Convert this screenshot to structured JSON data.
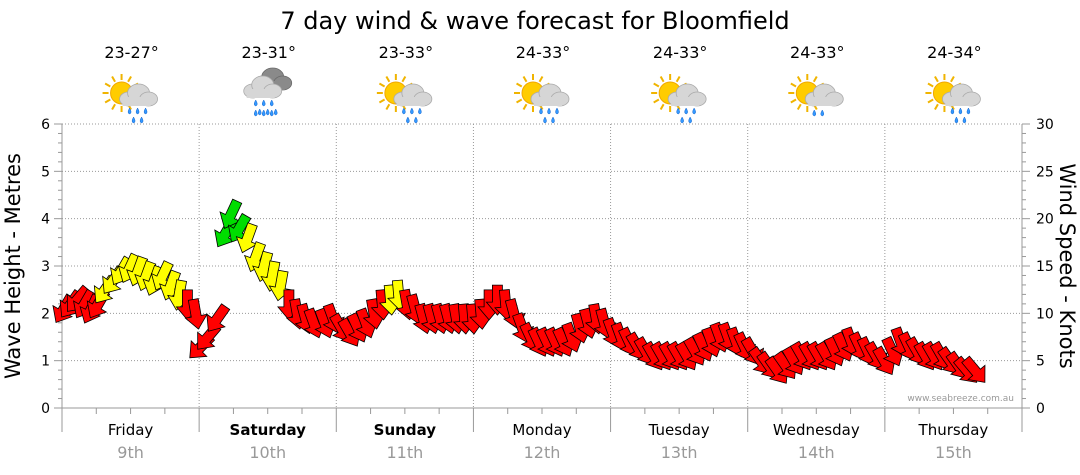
{
  "chart_data": {
    "type": "line",
    "title": "7 day wind & wave forecast for Bloomfield",
    "ylabel_left": "Wave Height - Metres",
    "ylabel_right": "Wind Speed - Knots",
    "ylim_left": [
      0,
      6
    ],
    "ylim_right": [
      0,
      30
    ],
    "yticks_left": [
      "0",
      "1",
      "2",
      "3",
      "4",
      "5",
      "6"
    ],
    "yticks_right": [
      "0",
      "5",
      "10",
      "15",
      "20",
      "25",
      "30"
    ],
    "grid": true,
    "watermark": "www.seabreeze.com.au",
    "days": [
      {
        "name": "Friday",
        "date": "9th",
        "temp": "23-27°",
        "icon": "sun-cloud-showers-icon",
        "bold": false
      },
      {
        "name": "Saturday",
        "date": "10th",
        "temp": "23-31°",
        "icon": "cloud-rain-icon",
        "bold": true
      },
      {
        "name": "Sunday",
        "date": "11th",
        "temp": "23-33°",
        "icon": "sun-cloud-showers-icon",
        "bold": true
      },
      {
        "name": "Monday",
        "date": "12th",
        "temp": "24-33°",
        "icon": "sun-cloud-showers-icon",
        "bold": false
      },
      {
        "name": "Tuesday",
        "date": "13th",
        "temp": "24-33°",
        "icon": "sun-cloud-showers-icon",
        "bold": false
      },
      {
        "name": "Wednesday",
        "date": "14th",
        "temp": "24-33°",
        "icon": "sun-cloud-light-rain-icon",
        "bold": false
      },
      {
        "name": "Thursday",
        "date": "15th",
        "temp": "24-34°",
        "icon": "sun-cloud-showers-icon",
        "bold": false
      }
    ],
    "series": [
      {
        "name": "Wind Speed",
        "unit": "knots",
        "color_scale": {
          "red": "#ff0000",
          "yellow": "#ffff00",
          "green": "#00dd00"
        },
        "points": [
          [
            0.0,
            10.5,
            210,
            "red"
          ],
          [
            0.05,
            11.0,
            215,
            "red"
          ],
          [
            0.1,
            11.5,
            220,
            "red"
          ],
          [
            0.15,
            11.0,
            210,
            "red"
          ],
          [
            0.2,
            10.5,
            205,
            "red"
          ],
          [
            0.25,
            11.0,
            210,
            "red"
          ],
          [
            0.3,
            12.5,
            215,
            "yellow"
          ],
          [
            0.36,
            13.5,
            215,
            "yellow"
          ],
          [
            0.42,
            14.5,
            210,
            "yellow"
          ],
          [
            0.48,
            14.8,
            205,
            "yellow"
          ],
          [
            0.54,
            14.5,
            200,
            "yellow"
          ],
          [
            0.6,
            14.0,
            200,
            "yellow"
          ],
          [
            0.66,
            13.5,
            200,
            "yellow"
          ],
          [
            0.72,
            14.0,
            205,
            "yellow"
          ],
          [
            0.78,
            13.0,
            200,
            "yellow"
          ],
          [
            0.84,
            12.0,
            190,
            "yellow"
          ],
          [
            0.9,
            11.0,
            180,
            "red"
          ],
          [
            0.96,
            10.0,
            170,
            "red"
          ],
          [
            1.0,
            6.5,
            225,
            "red"
          ],
          [
            1.05,
            7.5,
            220,
            "red"
          ],
          [
            1.12,
            9.5,
            215,
            "red"
          ],
          [
            1.18,
            18.5,
            210,
            "green"
          ],
          [
            1.22,
            20.5,
            205,
            "green"
          ],
          [
            1.28,
            19.0,
            210,
            "green"
          ],
          [
            1.34,
            18.0,
            200,
            "yellow"
          ],
          [
            1.4,
            16.0,
            200,
            "yellow"
          ],
          [
            1.46,
            15.0,
            195,
            "yellow"
          ],
          [
            1.52,
            14.0,
            190,
            "yellow"
          ],
          [
            1.58,
            13.0,
            190,
            "yellow"
          ],
          [
            1.64,
            11.0,
            180,
            "red"
          ],
          [
            1.7,
            10.0,
            170,
            "red"
          ],
          [
            1.76,
            9.5,
            165,
            "red"
          ],
          [
            1.82,
            9.0,
            160,
            "red"
          ],
          [
            1.9,
            9.0,
            160,
            "red"
          ],
          [
            1.96,
            9.5,
            160,
            "red"
          ],
          [
            2.02,
            8.5,
            150,
            "red"
          ],
          [
            2.08,
            8.0,
            150,
            "red"
          ],
          [
            2.14,
            8.5,
            155,
            "red"
          ],
          [
            2.2,
            9.0,
            160,
            "red"
          ],
          [
            2.26,
            10.0,
            170,
            "red"
          ],
          [
            2.32,
            11.0,
            175,
            "red"
          ],
          [
            2.38,
            11.5,
            175,
            "yellow"
          ],
          [
            2.44,
            12.0,
            175,
            "yellow"
          ],
          [
            2.5,
            11.0,
            170,
            "red"
          ],
          [
            2.56,
            10.5,
            165,
            "red"
          ],
          [
            2.62,
            9.5,
            165,
            "red"
          ],
          [
            2.68,
            9.5,
            165,
            "red"
          ],
          [
            2.74,
            9.5,
            165,
            "red"
          ],
          [
            2.8,
            9.5,
            165,
            "red"
          ],
          [
            2.86,
            9.5,
            170,
            "red"
          ],
          [
            2.92,
            9.5,
            175,
            "red"
          ],
          [
            2.98,
            9.5,
            175,
            "red"
          ],
          [
            3.04,
            10.0,
            175,
            "red"
          ],
          [
            3.1,
            11.0,
            180,
            "red"
          ],
          [
            3.16,
            11.5,
            180,
            "red"
          ],
          [
            3.22,
            11.0,
            175,
            "red"
          ],
          [
            3.28,
            10.0,
            165,
            "red"
          ],
          [
            3.34,
            8.5,
            160,
            "red"
          ],
          [
            3.4,
            7.5,
            155,
            "red"
          ],
          [
            3.46,
            7.0,
            155,
            "red"
          ],
          [
            3.52,
            7.0,
            155,
            "red"
          ],
          [
            3.58,
            7.0,
            155,
            "red"
          ],
          [
            3.64,
            7.0,
            155,
            "red"
          ],
          [
            3.7,
            7.5,
            160,
            "red"
          ],
          [
            3.76,
            8.5,
            165,
            "red"
          ],
          [
            3.82,
            9.0,
            165,
            "red"
          ],
          [
            3.88,
            9.5,
            170,
            "red"
          ],
          [
            3.94,
            9.0,
            165,
            "red"
          ],
          [
            4.0,
            8.0,
            160,
            "red"
          ],
          [
            4.06,
            7.5,
            160,
            "red"
          ],
          [
            4.12,
            7.0,
            155,
            "red"
          ],
          [
            4.18,
            6.5,
            150,
            "red"
          ],
          [
            4.24,
            6.0,
            150,
            "red"
          ],
          [
            4.3,
            5.5,
            150,
            "red"
          ],
          [
            4.36,
            5.5,
            150,
            "red"
          ],
          [
            4.42,
            5.5,
            150,
            "red"
          ],
          [
            4.48,
            5.5,
            150,
            "red"
          ],
          [
            4.54,
            5.5,
            150,
            "red"
          ],
          [
            4.6,
            6.0,
            150,
            "red"
          ],
          [
            4.66,
            6.5,
            155,
            "red"
          ],
          [
            4.72,
            7.0,
            160,
            "red"
          ],
          [
            4.78,
            7.5,
            160,
            "red"
          ],
          [
            4.84,
            7.5,
            160,
            "red"
          ],
          [
            4.9,
            7.0,
            160,
            "red"
          ],
          [
            4.96,
            6.5,
            155,
            "red"
          ],
          [
            5.02,
            6.0,
            150,
            "red"
          ],
          [
            5.08,
            5.0,
            145,
            "red"
          ],
          [
            5.14,
            4.5,
            145,
            "red"
          ],
          [
            5.2,
            4.0,
            145,
            "red"
          ],
          [
            5.26,
            4.5,
            145,
            "red"
          ],
          [
            5.32,
            5.0,
            150,
            "red"
          ],
          [
            5.38,
            5.5,
            150,
            "red"
          ],
          [
            5.44,
            5.5,
            150,
            "red"
          ],
          [
            5.5,
            5.5,
            150,
            "red"
          ],
          [
            5.56,
            5.5,
            150,
            "red"
          ],
          [
            5.62,
            6.0,
            155,
            "red"
          ],
          [
            5.68,
            6.5,
            155,
            "red"
          ],
          [
            5.74,
            7.0,
            160,
            "red"
          ],
          [
            5.8,
            6.5,
            155,
            "red"
          ],
          [
            5.86,
            6.0,
            155,
            "red"
          ],
          [
            5.92,
            5.5,
            150,
            "red"
          ],
          [
            5.98,
            5.0,
            150,
            "red"
          ],
          [
            6.04,
            6.0,
            155,
            "red"
          ],
          [
            6.1,
            7.0,
            160,
            "red"
          ],
          [
            6.16,
            6.5,
            155,
            "red"
          ],
          [
            6.22,
            6.0,
            150,
            "red"
          ],
          [
            6.28,
            5.5,
            150,
            "red"
          ],
          [
            6.34,
            5.5,
            150,
            "red"
          ],
          [
            6.4,
            5.5,
            150,
            "red"
          ],
          [
            6.46,
            5.0,
            145,
            "red"
          ],
          [
            6.52,
            4.5,
            145,
            "red"
          ],
          [
            6.58,
            4.0,
            140,
            "red"
          ],
          [
            6.64,
            4.0,
            140,
            "red"
          ]
        ]
      }
    ]
  }
}
